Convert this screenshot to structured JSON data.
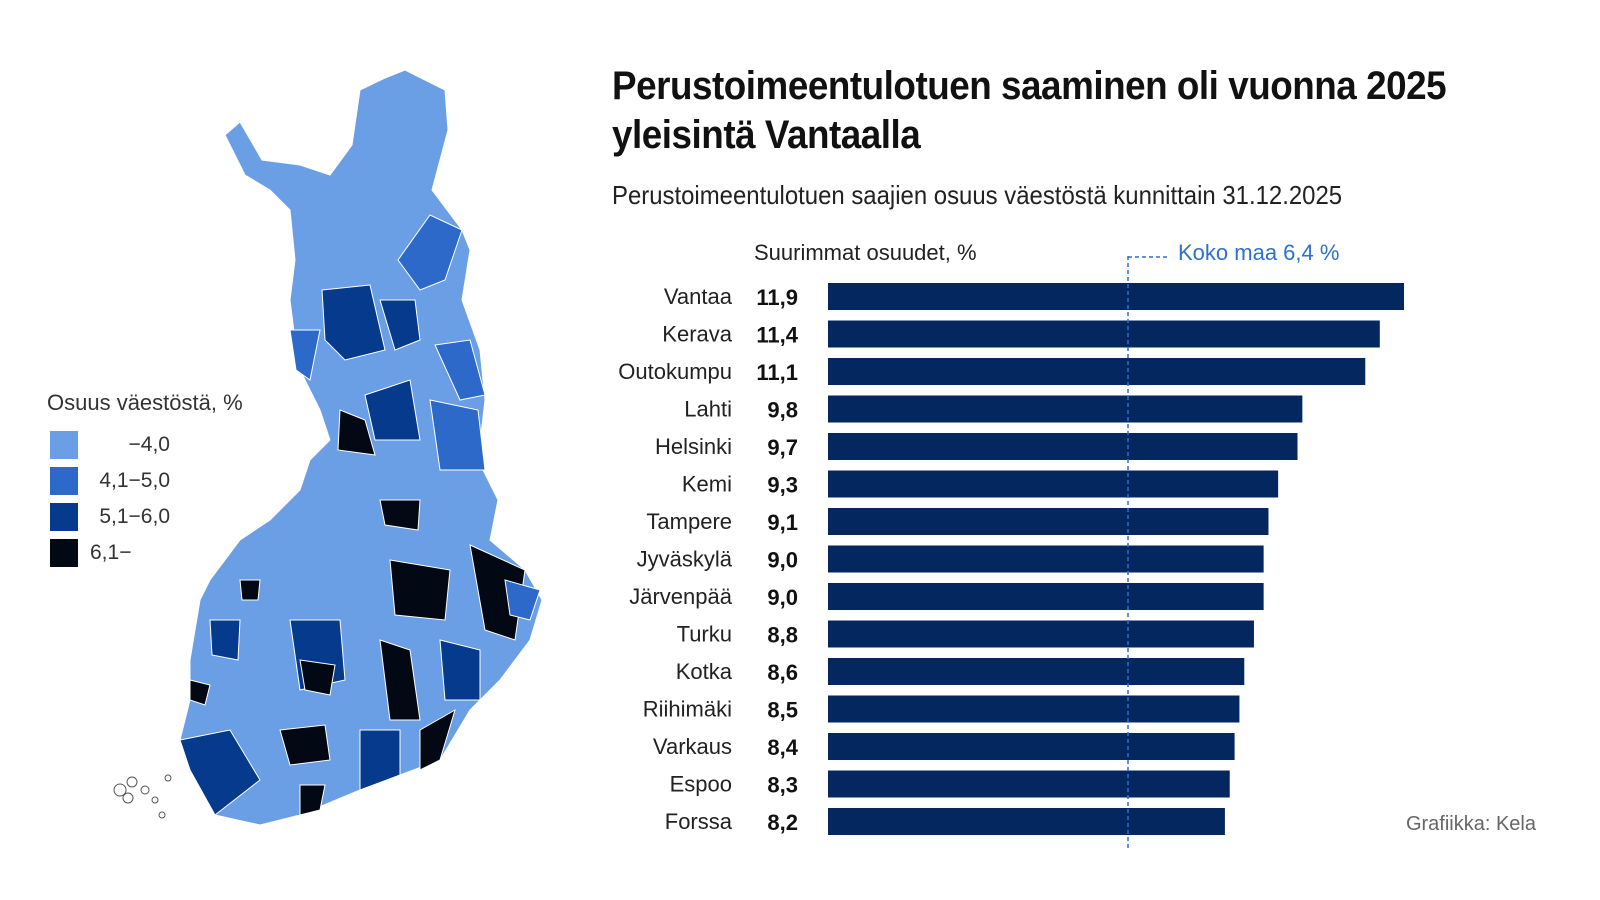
{
  "title": "Perustoimeentulotuen saaminen oli vuonna 2025 yleisintä Vantaalla",
  "subtitle": "Perustoimeentulotuen saajien osuus väestöstä kunnittain 31.12.2025",
  "credit": "Grafiikka: Kela",
  "legend": {
    "title": "Osuus väestöstä, %",
    "items": [
      {
        "label": "−4,0",
        "color": "#6a9fe6"
      },
      {
        "label": "4,1−5,0",
        "color": "#2c69c9"
      },
      {
        "label": "5,1−6,0",
        "color": "#063a8c"
      },
      {
        "label": "6,1−",
        "color": "#020814"
      }
    ]
  },
  "chart_data": {
    "type": "bar",
    "orientation": "horizontal",
    "title": "Suurimmat osuudet, %",
    "categories": [
      "Vantaa",
      "Kerava",
      "Outokumpu",
      "Lahti",
      "Helsinki",
      "Kemi",
      "Tampere",
      "Jyväskylä",
      "Järvenpää",
      "Turku",
      "Kotka",
      "Riihimäki",
      "Varkaus",
      "Espoo",
      "Forssa"
    ],
    "values": [
      11.9,
      11.4,
      11.1,
      9.8,
      9.7,
      9.3,
      9.1,
      9.0,
      9.0,
      8.8,
      8.6,
      8.5,
      8.4,
      8.3,
      8.2
    ],
    "value_labels": [
      "11,9",
      "11,4",
      "11,1",
      "9,8",
      "9,7",
      "9,3",
      "9,1",
      "9,0",
      "9,0",
      "8,8",
      "8,6",
      "8,5",
      "8,4",
      "8,3",
      "8,2"
    ],
    "reference_line": {
      "label": "Koko maa 6,4 %",
      "value": 6.4,
      "color": "#2e6fd0"
    },
    "bar_color": "#03275e",
    "xlim": [
      0,
      11.9
    ]
  }
}
